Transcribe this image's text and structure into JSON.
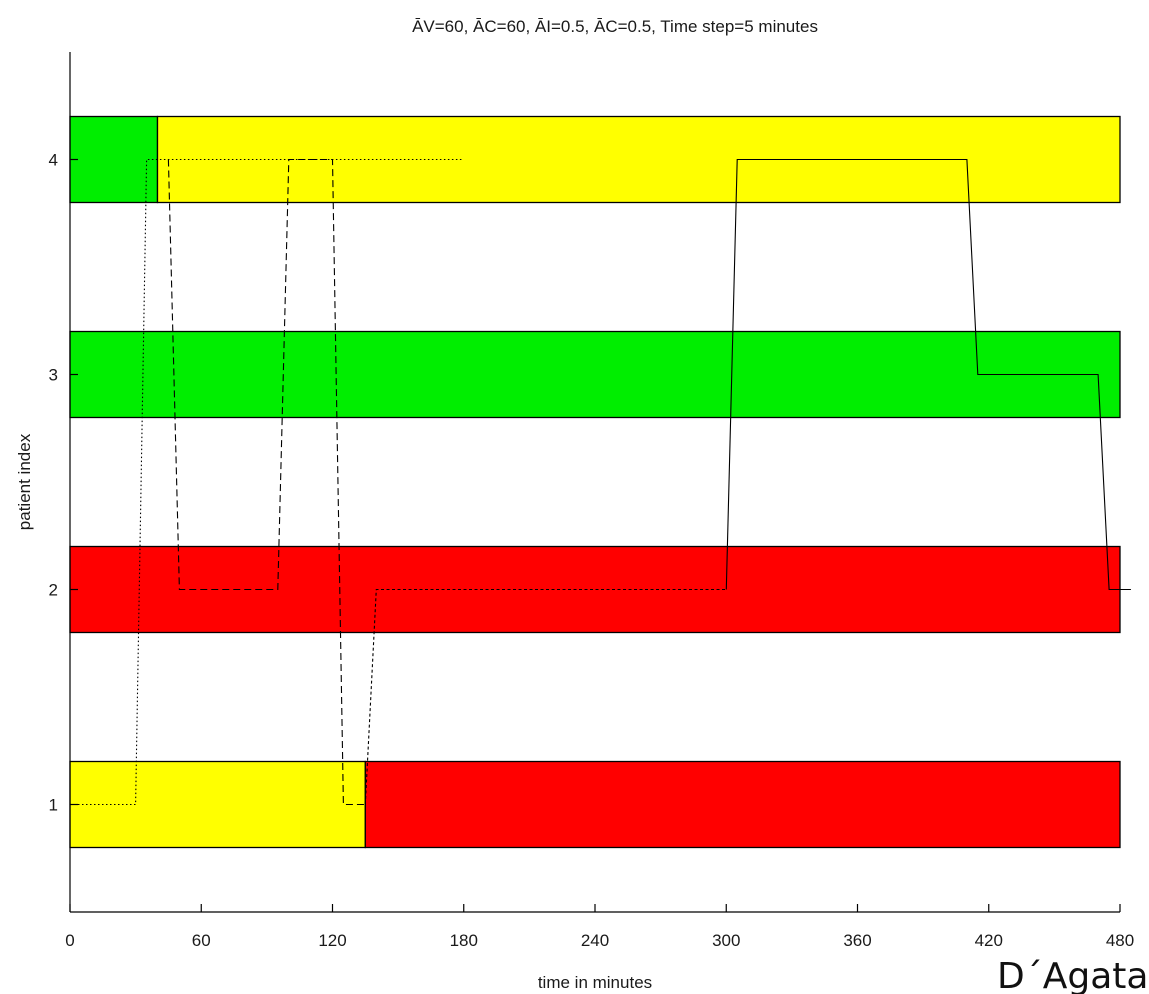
{
  "chart_data": {
    "type": "timeline",
    "title": "ĀV=60,  ĀC=60,  ĀI=0.5,  ĀC=0.5,  Time step=5 minutes",
    "xlabel": "time in minutes",
    "ylabel": "patient index",
    "credit": "D´Agata",
    "xlim": [
      0,
      480
    ],
    "ylim": [
      0.5,
      4.5
    ],
    "xticks": [
      0,
      60,
      120,
      180,
      240,
      300,
      360,
      420,
      480
    ],
    "yticks": [
      1,
      2,
      3,
      4
    ],
    "band_half_height": 0.2,
    "colors": {
      "red": "#ff0000",
      "yellow": "#ffff00",
      "green": "#00ee00"
    },
    "patients": [
      {
        "index": 1,
        "segments": [
          {
            "start": 0,
            "end": 135,
            "color": "yellow"
          },
          {
            "start": 135,
            "end": 480,
            "color": "red"
          }
        ]
      },
      {
        "index": 2,
        "segments": [
          {
            "start": 0,
            "end": 480,
            "color": "red"
          }
        ]
      },
      {
        "index": 3,
        "segments": [
          {
            "start": 0,
            "end": 480,
            "color": "green"
          }
        ]
      },
      {
        "index": 4,
        "segments": [
          {
            "start": 0,
            "end": 40,
            "color": "green"
          },
          {
            "start": 40,
            "end": 480,
            "color": "yellow"
          }
        ]
      }
    ],
    "series": [
      {
        "style": "dotted",
        "x": [
          0,
          30,
          35,
          40,
          180
        ],
        "y": [
          1,
          1,
          4,
          4,
          4
        ]
      },
      {
        "style": "dashed",
        "x": [
          45,
          50,
          95,
          100,
          120,
          125,
          135
        ],
        "y": [
          4,
          2,
          2,
          4,
          4,
          1,
          1
        ]
      },
      {
        "style": "densely-dashed",
        "x": [
          135,
          140,
          150,
          300
        ],
        "y": [
          1,
          2,
          2,
          2
        ]
      },
      {
        "style": "solid",
        "x": [
          300,
          305,
          410,
          415,
          470,
          475,
          485
        ],
        "y": [
          2,
          4,
          4,
          3,
          3,
          2,
          2
        ]
      }
    ]
  }
}
